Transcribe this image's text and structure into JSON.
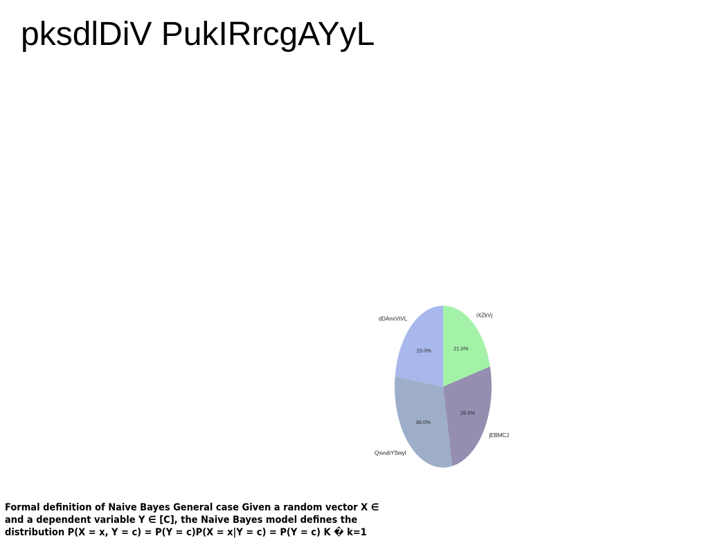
{
  "page": {
    "title": "pksdlDiV PukIRrcgAYyL",
    "caption": "Formal definition of Naive Bayes General case Given a random vector X ∈ and a dependent variable Y ∈ [C], the Naive Bayes model defines the distribution P(X = x, Y = c) = P(Y = c)P(X = x|Y = c) = P(Y = c) K � k=1"
  },
  "chart_data": {
    "type": "pie",
    "title": "",
    "start_angle_deg": 90,
    "direction": "clockwise",
    "slices": [
      {
        "label": "iXZkVj",
        "value": 21.0,
        "pct_text": "21.0%",
        "color": "#a3f2a8"
      },
      {
        "label": "jEBMCJ",
        "value": 26.0,
        "pct_text": "26.0%",
        "color": "#958eb0"
      },
      {
        "label": "QsvubYSwyl",
        "value": 30.0,
        "pct_text": "30.0%",
        "color": "#9eaec9"
      },
      {
        "label": "dDAnxVtVL",
        "value": 23.0,
        "pct_text": "23.0%",
        "color": "#a8b8ec"
      }
    ]
  }
}
